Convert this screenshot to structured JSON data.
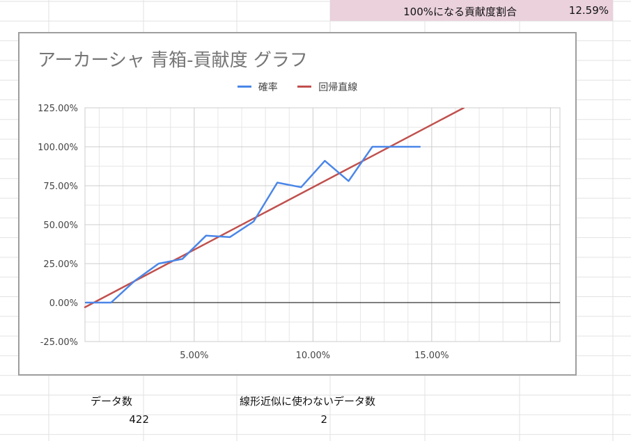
{
  "sheet": {
    "summary_label": "100%になる貢献度割合",
    "summary_value": "12.59%",
    "count_label": "データ数",
    "count_value": "422",
    "excluded_label": "線形近似に使わないデータ数",
    "excluded_value": "2",
    "highlight_color": "#ead1dc"
  },
  "chart_data": {
    "type": "line",
    "title": "アーカーシャ  青箱-貢献度 グラフ",
    "xlabel": "",
    "ylabel": "",
    "xlim": [
      0.004,
      0.204
    ],
    "ylim": [
      -0.25,
      1.25
    ],
    "x_ticks": [
      {
        "value": 0.05,
        "label": "5.00%"
      },
      {
        "value": 0.1,
        "label": "10.00%"
      },
      {
        "value": 0.15,
        "label": "15.00%"
      }
    ],
    "y_ticks": [
      {
        "value": 1.25,
        "label": "125.00%"
      },
      {
        "value": 1.0,
        "label": "100.00%"
      },
      {
        "value": 0.75,
        "label": "75.00%"
      },
      {
        "value": 0.5,
        "label": "50.00%"
      },
      {
        "value": 0.25,
        "label": "25.00%"
      },
      {
        "value": 0.0,
        "label": "0.00%"
      },
      {
        "value": -0.25,
        "label": "-25.00%"
      }
    ],
    "grid": true,
    "legend_position": "top",
    "series": [
      {
        "name": "確率",
        "color": "#4a86e8",
        "x": [
          0.0045,
          0.015,
          0.025,
          0.035,
          0.045,
          0.055,
          0.065,
          0.075,
          0.085,
          0.095,
          0.105,
          0.115,
          0.125,
          0.135,
          0.145
        ],
        "y": [
          0.0,
          0.0,
          0.14,
          0.25,
          0.28,
          0.43,
          0.42,
          0.52,
          0.77,
          0.74,
          0.91,
          0.78,
          1.0,
          1.0,
          1.0
        ]
      },
      {
        "name": "回帰直線",
        "color": "#c0504d",
        "x": [
          0.004,
          0.1635
        ],
        "y": [
          -0.03,
          1.25
        ]
      }
    ]
  }
}
